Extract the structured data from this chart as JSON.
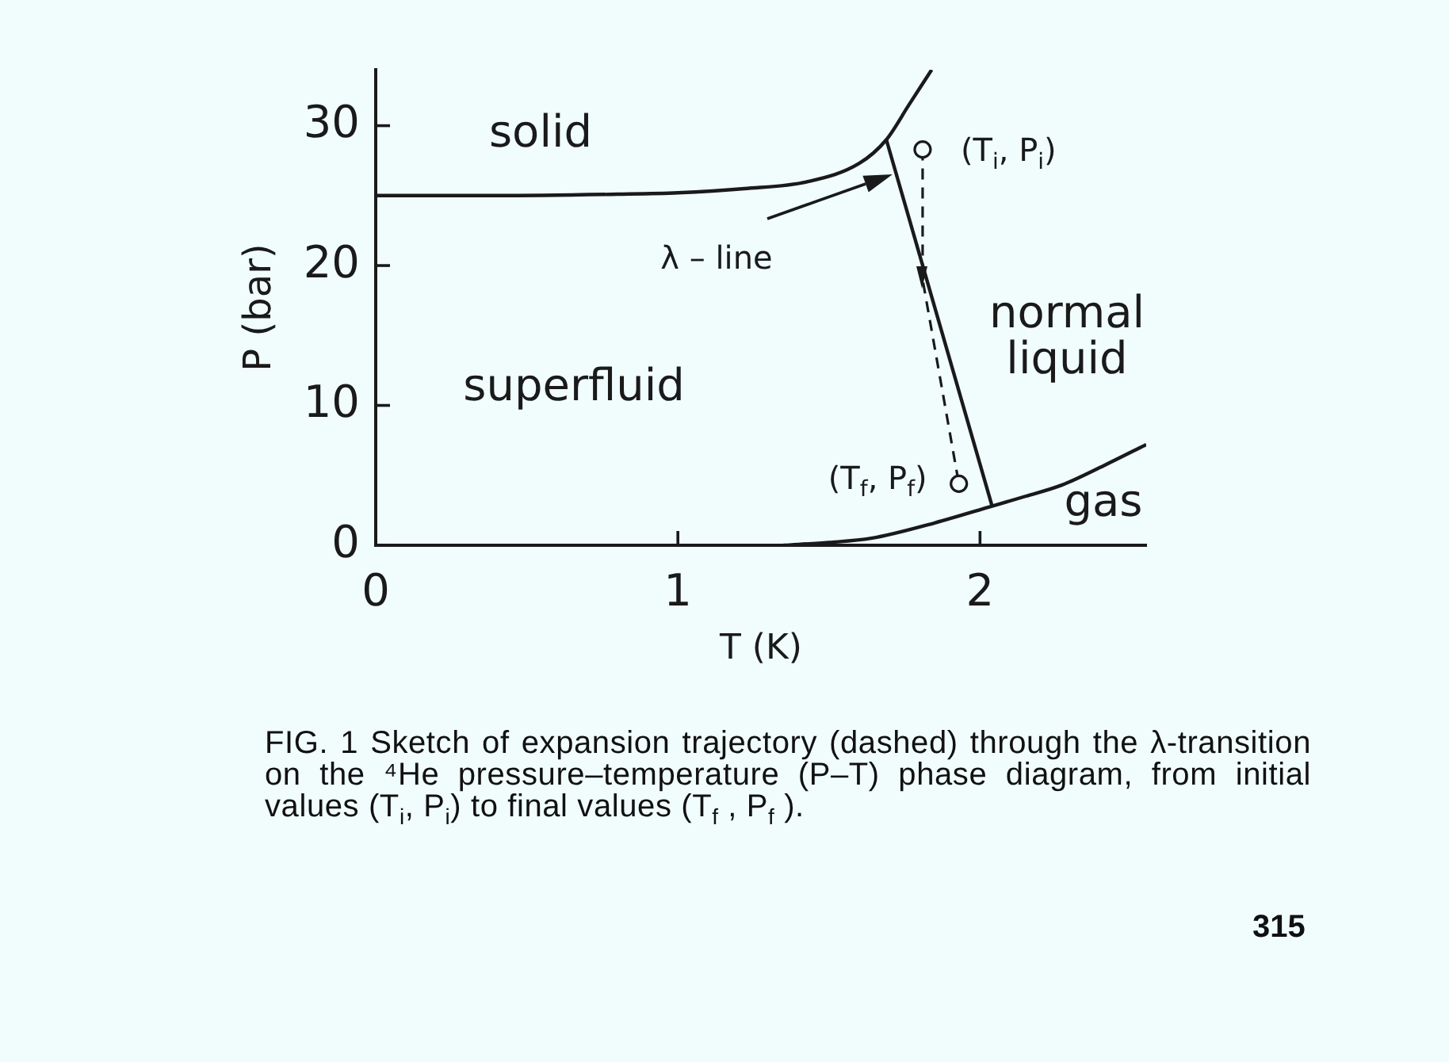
{
  "chart_data": {
    "type": "line",
    "xlabel": "T (K)",
    "ylabel": "P (bar)",
    "xlim": [
      0,
      2.55
    ],
    "ylim": [
      0,
      34
    ],
    "xticks": [
      0,
      1,
      2
    ],
    "yticks": [
      0,
      10,
      20,
      30
    ],
    "grid": false,
    "legend": false,
    "series": [
      {
        "color": "#1a1a1a",
        "x": [
          0,
          0.4,
          0.8,
          1.0,
          1.22,
          1.43,
          1.6,
          1.69,
          1.765,
          1.84
        ],
        "values": [
          25,
          25,
          25.1,
          25.2,
          25.5,
          26.0,
          27.3,
          29.0,
          31.5,
          34
        ]
      },
      {
        "color": "#1a1a1a",
        "x": [
          1.69,
          2.04
        ],
        "values": [
          29.0,
          2.8
        ]
      },
      {
        "color": "#1a1a1a",
        "x": [
          1.35,
          1.5,
          1.64,
          1.85,
          2.04,
          2.15,
          2.27,
          2.41,
          2.55
        ],
        "values": [
          0,
          0.2,
          0.5,
          1.6,
          2.8,
          3.5,
          4.3,
          5.7,
          7.2
        ]
      },
      {
        "color": "#1a1a1a",
        "line_style": "dashed",
        "x": [
          1.81,
          1.81,
          1.93
        ],
        "values": [
          28.3,
          19.0,
          4.4
        ]
      },
      {
        "type": "scatter",
        "color": "#1a1a1a",
        "marker": "circle",
        "x": [
          1.81,
          1.93
        ],
        "values": [
          28.3,
          4.4
        ]
      }
    ],
    "annotations": [
      "solid",
      "superfluid",
      "normal\nliquid",
      "gas",
      {
        "text": "(T$_{i}$, P$_{i}$)",
        "x": 1.81,
        "y": 28.3
      },
      {
        "text": "(T$_{f}$, P$_{f}$)",
        "x": 1.93,
        "y": 4.4
      },
      "λ – line",
      "FIG. 1 Sketch of expansion trajectory (dashed) through the λ-transition on the ⁴He pressure–temperature (P–T) phase diagram, from initial values (T$_{i}$, P$_{i}$) to final values (T$_{f}$ , P$_{f}$ ).",
      "315"
    ]
  }
}
